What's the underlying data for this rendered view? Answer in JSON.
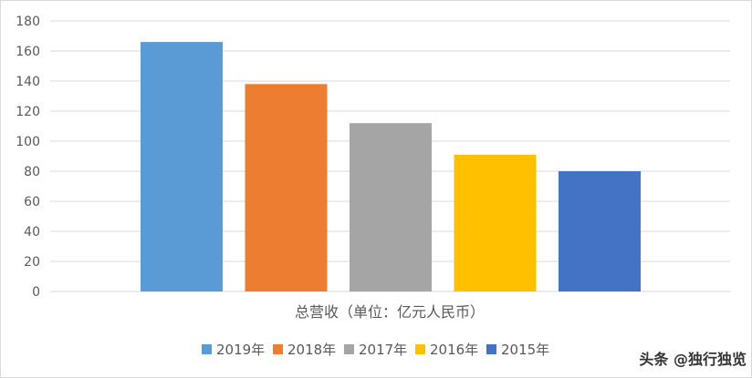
{
  "chart_data": {
    "type": "bar",
    "category_label": "总营收（单位：亿元人民币）",
    "series": [
      {
        "name": "2019年",
        "values": [
          166
        ],
        "color": "#5b9bd5"
      },
      {
        "name": "2018年",
        "values": [
          138
        ],
        "color": "#ed7d31"
      },
      {
        "name": "2017年",
        "values": [
          112
        ],
        "color": "#a5a5a5"
      },
      {
        "name": "2016年",
        "values": [
          91
        ],
        "color": "#ffc000"
      },
      {
        "name": "2015年",
        "values": [
          80
        ],
        "color": "#4472c4"
      }
    ],
    "yticks": [
      "0",
      "20",
      "40",
      "60",
      "80",
      "100",
      "120",
      "140",
      "160",
      "180"
    ],
    "ylim": [
      0,
      180
    ],
    "grid": true,
    "legend_position": "bottom"
  },
  "watermark": "头条 @独行独览"
}
